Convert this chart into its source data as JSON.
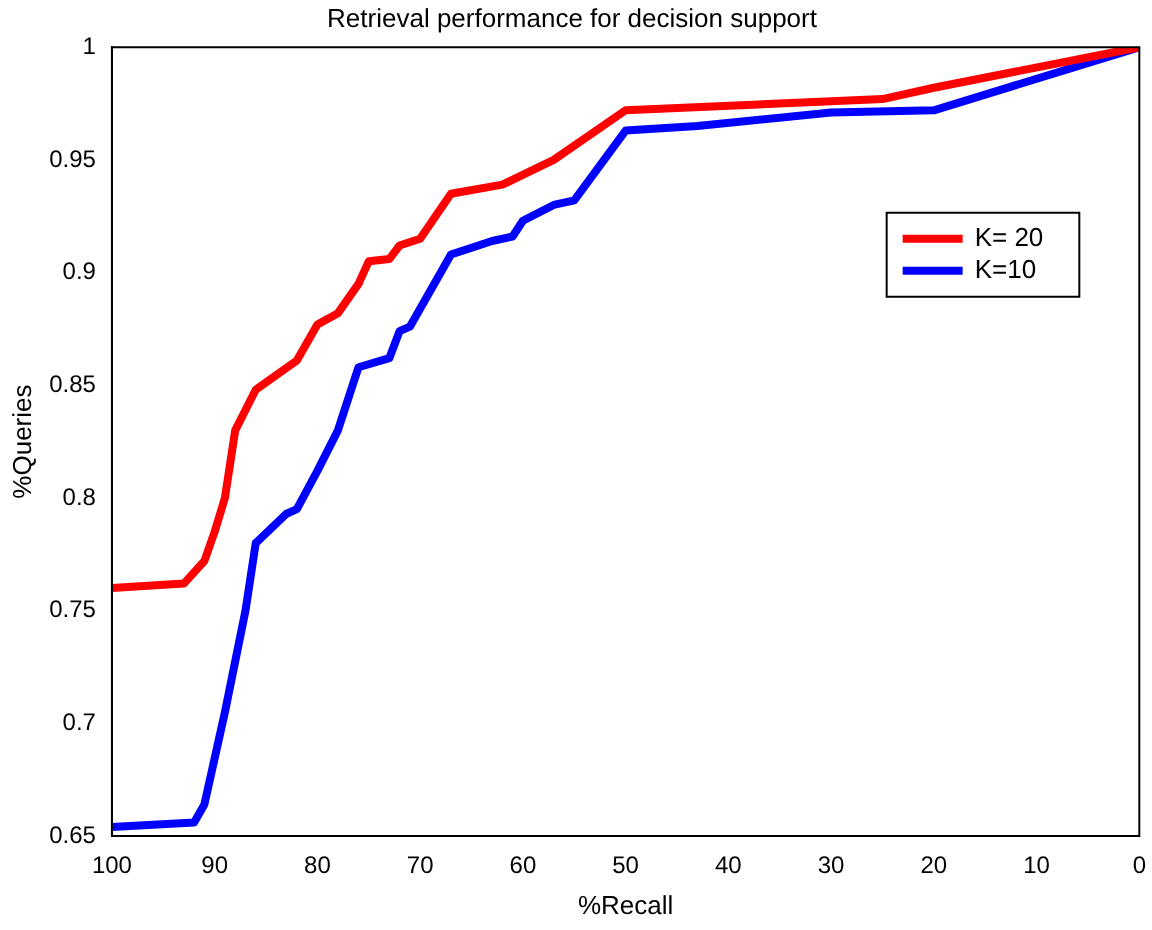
{
  "chart_data": {
    "type": "line",
    "title": "Retrieval performance for decision support",
    "xlabel": "%Recall",
    "ylabel": "%Queries",
    "xlim": [
      100,
      0
    ],
    "xticks": [
      100,
      90,
      80,
      70,
      60,
      50,
      40,
      30,
      20,
      10,
      0
    ],
    "ylim": [
      0.65,
      1
    ],
    "yticks": [
      0.65,
      0.7,
      0.75,
      0.8,
      0.85,
      0.9,
      0.95,
      1
    ],
    "grid": false,
    "legend": "right",
    "marker": "none",
    "line_style": "solid",
    "series": [
      {
        "name": "K= 20",
        "color": "#ff0000",
        "x": [
          100,
          93,
          91,
          90,
          89,
          88,
          86,
          82,
          80,
          78,
          76,
          75,
          73,
          72,
          70,
          67,
          62,
          57,
          50,
          25,
          20,
          0
        ],
        "values": [
          0.76,
          0.762,
          0.772,
          0.785,
          0.8,
          0.83,
          0.848,
          0.861,
          0.877,
          0.882,
          0.895,
          0.905,
          0.906,
          0.912,
          0.915,
          0.935,
          0.939,
          0.95,
          0.972,
          0.977,
          0.982,
          1
        ]
      },
      {
        "name": "K=10",
        "color": "#0000ff",
        "x": [
          100,
          92,
          91,
          89,
          87,
          86,
          83,
          82,
          80,
          78,
          76,
          73,
          72,
          71,
          67,
          63,
          61,
          60,
          57,
          55,
          50,
          43,
          30,
          20,
          0
        ],
        "values": [
          0.654,
          0.656,
          0.664,
          0.705,
          0.75,
          0.78,
          0.793,
          0.795,
          0.812,
          0.83,
          0.858,
          0.862,
          0.874,
          0.876,
          0.908,
          0.914,
          0.916,
          0.923,
          0.93,
          0.932,
          0.963,
          0.965,
          0.971,
          0.972,
          1
        ]
      }
    ]
  }
}
